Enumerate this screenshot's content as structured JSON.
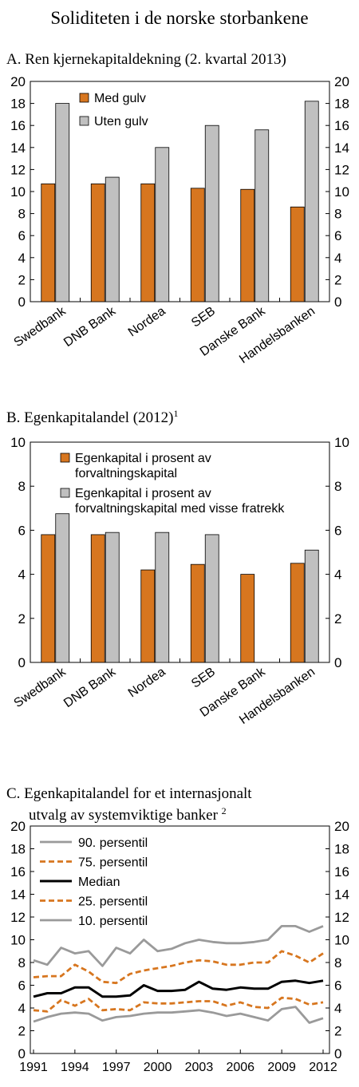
{
  "figure_title": "Soliditeten i de norske storbankene",
  "colors": {
    "orange": "#d7761f",
    "gray": "#c0c0c0",
    "dark_gray": "#9a9a9a",
    "black": "#000000"
  },
  "chart_data": [
    {
      "type": "bar",
      "title": "A.  Ren kjernekapitaldekning (2. kvartal 2013)",
      "title_superscript": "",
      "categories": [
        "Swedbank",
        "DNB Bank",
        "Nordea",
        "SEB",
        "Danske Bank",
        "Handelsbanken"
      ],
      "series": [
        {
          "name": "Med gulv",
          "color": "#d7761f",
          "values": [
            10.7,
            10.7,
            10.7,
            10.3,
            10.2,
            8.6
          ]
        },
        {
          "name": "Uten gulv",
          "color": "#c0c0c0",
          "values": [
            18.0,
            11.3,
            14.0,
            16.0,
            15.6,
            18.2
          ]
        }
      ],
      "ylim": [
        0,
        20
      ],
      "yticks": [
        0,
        2,
        4,
        6,
        8,
        10,
        12,
        14,
        16,
        18,
        20
      ],
      "ytick_labels": [
        "0",
        "2",
        "4",
        "6",
        "8",
        "10",
        "12",
        "14",
        "16",
        "18",
        "20"
      ],
      "grid": false,
      "legend_position": "top-left"
    },
    {
      "type": "bar",
      "title": "B.  Egenkapitalandel (2012)",
      "title_superscript": "1",
      "categories": [
        "Swedbank",
        "DNB Bank",
        "Nordea",
        "SEB",
        "Danske Bank",
        "Handelsbanken"
      ],
      "series": [
        {
          "name": "Egenkapital i prosent av forvaltningskapital",
          "legend_lines": [
            "Egenkapital i prosent av",
            "forvaltningskapital"
          ],
          "color": "#d7761f",
          "values": [
            5.8,
            5.8,
            4.2,
            4.45,
            4.0,
            4.5
          ]
        },
        {
          "name": "Egenkapital i prosent av forvaltningskapital med visse fratrekk",
          "legend_lines": [
            "Egenkapital i prosent av",
            "forvaltningskapital med visse fratrekk"
          ],
          "color": "#c0c0c0",
          "values": [
            6.75,
            5.9,
            5.9,
            5.8,
            null,
            5.1
          ]
        }
      ],
      "ylim": [
        0,
        10
      ],
      "yticks": [
        0,
        2,
        4,
        6,
        8,
        10
      ],
      "ytick_labels": [
        "0",
        "2",
        "4",
        "6",
        "8",
        "10"
      ],
      "grid": false,
      "legend_position": "top-left"
    },
    {
      "type": "line",
      "title_lines": [
        "C.  Egenkapitalandel for et internasjonalt",
        "utvalg av systemviktige banker"
      ],
      "title_superscript": "2",
      "x": [
        1991,
        1992,
        1993,
        1994,
        1995,
        1996,
        1997,
        1998,
        1999,
        2000,
        2001,
        2002,
        2003,
        2004,
        2005,
        2006,
        2007,
        2008,
        2009,
        2010,
        2011,
        2012
      ],
      "xticks": [
        1991,
        1994,
        1997,
        2000,
        2003,
        2006,
        2009,
        2012
      ],
      "xtick_labels": [
        "1991",
        "1994",
        "1997",
        "2000",
        "2003",
        "2006",
        "2009",
        "2012"
      ],
      "series": [
        {
          "name": "90. persentil",
          "color": "#9a9a9a",
          "dash": "solid",
          "values": [
            8.2,
            7.8,
            9.3,
            8.8,
            9.0,
            7.7,
            9.3,
            8.8,
            10.0,
            9.0,
            9.2,
            9.7,
            10.0,
            9.8,
            9.7,
            9.7,
            9.8,
            10.0,
            11.2,
            11.2,
            10.7,
            11.2
          ]
        },
        {
          "name": "75. persentil",
          "color": "#d7761f",
          "dash": "dashed",
          "values": [
            6.7,
            6.8,
            6.8,
            7.8,
            7.2,
            6.3,
            6.2,
            7.0,
            7.3,
            7.5,
            7.7,
            8.0,
            8.2,
            8.1,
            7.8,
            7.8,
            8.0,
            8.0,
            9.0,
            8.6,
            8.0,
            8.8
          ]
        },
        {
          "name": "Median",
          "color": "#000000",
          "dash": "solid",
          "values": [
            5.0,
            5.3,
            5.3,
            5.8,
            5.8,
            5.0,
            5.0,
            5.1,
            6.0,
            5.5,
            5.5,
            5.6,
            6.3,
            5.7,
            5.6,
            5.8,
            5.7,
            5.7,
            6.3,
            6.4,
            6.2,
            6.4
          ]
        },
        {
          "name": "25. persentil",
          "color": "#d7761f",
          "dash": "dashed",
          "values": [
            3.8,
            3.7,
            4.7,
            4.2,
            4.8,
            3.8,
            3.9,
            3.8,
            4.5,
            4.4,
            4.4,
            4.5,
            4.6,
            4.6,
            4.2,
            4.5,
            4.1,
            4.0,
            4.9,
            4.8,
            4.3,
            4.5
          ]
        },
        {
          "name": "10. persentil",
          "color": "#9a9a9a",
          "dash": "solid",
          "values": [
            2.8,
            3.2,
            3.5,
            3.6,
            3.5,
            2.9,
            3.2,
            3.3,
            3.5,
            3.6,
            3.6,
            3.7,
            3.8,
            3.6,
            3.3,
            3.5,
            3.2,
            2.9,
            3.9,
            4.1,
            2.7,
            3.1
          ]
        }
      ],
      "ylim": [
        0,
        20
      ],
      "yticks": [
        0,
        2,
        4,
        6,
        8,
        10,
        12,
        14,
        16,
        18,
        20
      ],
      "ytick_labels": [
        "0",
        "2",
        "4",
        "6",
        "8",
        "10",
        "12",
        "14",
        "16",
        "18",
        "20"
      ],
      "grid": false,
      "legend_position": "top-left"
    }
  ]
}
